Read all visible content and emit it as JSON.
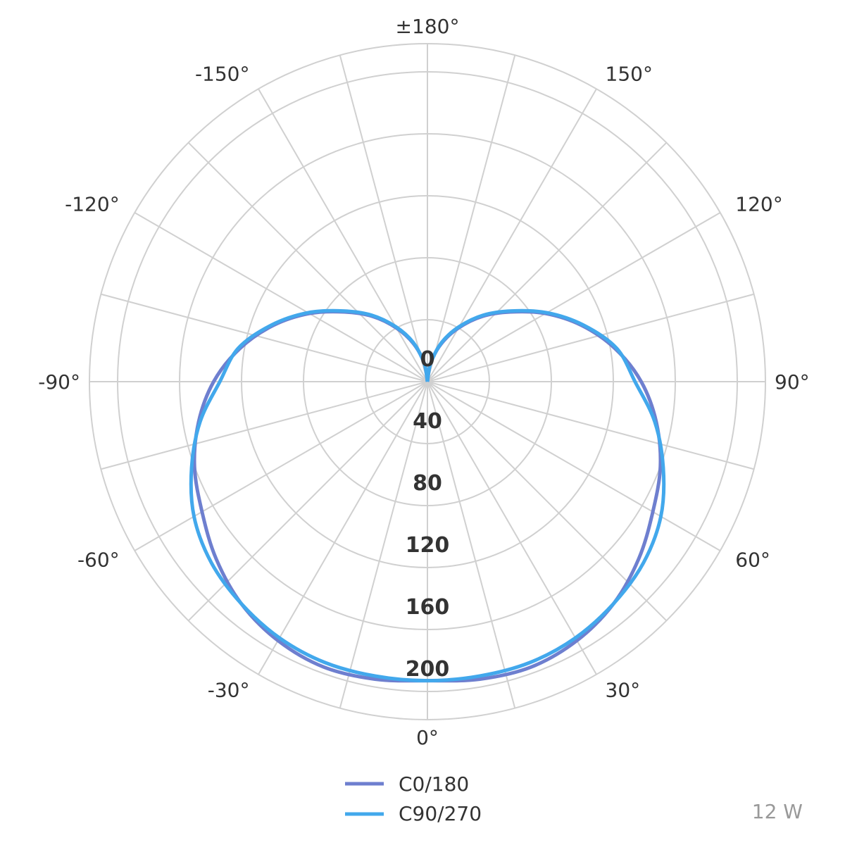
{
  "chart_data": {
    "type": "polar-line",
    "title": "",
    "radial_ticks": [
      0,
      40,
      80,
      120,
      160,
      200
    ],
    "radial_tick_labels": [
      "0",
      "40",
      "80",
      "120",
      "160",
      "200"
    ],
    "radial_max": 200,
    "angle_tick_labels": [
      {
        "angle": 0,
        "label": "0°"
      },
      {
        "angle": 30,
        "label": "30°"
      },
      {
        "angle": 60,
        "label": "60°"
      },
      {
        "angle": 90,
        "label": "90°"
      },
      {
        "angle": 120,
        "label": "120°"
      },
      {
        "angle": 150,
        "label": "150°"
      },
      {
        "angle": 180,
        "label": "±180°"
      },
      {
        "angle": -150,
        "label": "-150°"
      },
      {
        "angle": -120,
        "label": "-120°"
      },
      {
        "angle": -90,
        "label": "-90°"
      },
      {
        "angle": -60,
        "label": "-60°"
      },
      {
        "angle": -30,
        "label": "-30°"
      }
    ],
    "grid": true,
    "legend_position": "bottom-center",
    "series": [
      {
        "name": "C0/180",
        "color": "#6e7fcf",
        "angles": [
          -180,
          -170,
          -160,
          -150,
          -140,
          -130,
          -120,
          -110,
          -100,
          -90,
          -80,
          -70,
          -60,
          -50,
          -40,
          -30,
          -20,
          -10,
          0,
          10,
          20,
          30,
          40,
          50,
          60,
          70,
          80,
          90,
          100,
          110,
          120,
          130,
          140,
          150,
          160,
          170,
          180
        ],
        "values": [
          0,
          12,
          26,
          40,
          55,
          70,
          88,
          106,
          123,
          138,
          150,
          160,
          168,
          178,
          187,
          193,
          196,
          195,
          193,
          195,
          196,
          193,
          187,
          178,
          168,
          160,
          150,
          138,
          123,
          106,
          88,
          70,
          55,
          40,
          26,
          12,
          0
        ]
      },
      {
        "name": "C90/270",
        "color": "#42a8ec",
        "angles": [
          -180,
          -170,
          -160,
          -150,
          -140,
          -130,
          -120,
          -110,
          -100,
          -90,
          -80,
          -70,
          -60,
          -50,
          -40,
          -30,
          -20,
          -10,
          0,
          10,
          20,
          30,
          40,
          50,
          60,
          70,
          80,
          90,
          100,
          110,
          120,
          130,
          140,
          150,
          160,
          170,
          180
        ],
        "values": [
          0,
          12,
          27,
          41,
          56,
          71,
          89,
          107,
          124,
          134,
          149,
          162,
          174,
          182,
          187,
          191,
          193,
          193,
          193,
          193,
          193,
          191,
          187,
          182,
          174,
          162,
          149,
          134,
          124,
          107,
          89,
          71,
          56,
          41,
          27,
          12,
          0
        ]
      }
    ]
  },
  "power_label": "12 W"
}
